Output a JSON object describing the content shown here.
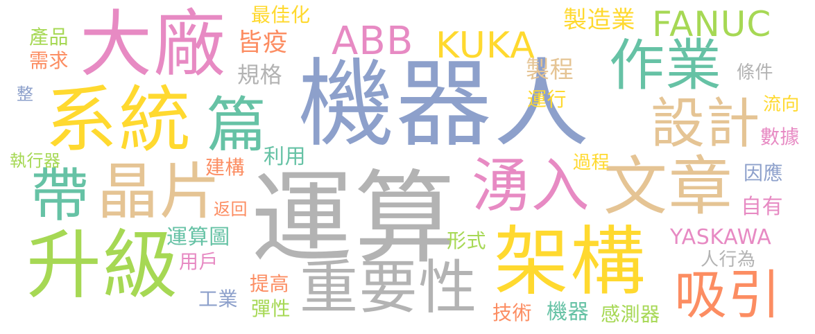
{
  "colors": {
    "background": "#ffffff",
    "blue": "#8da0cb",
    "gray": "#b3b3b3",
    "yellow": "#ffd92f",
    "green": "#a6d854",
    "pink": "#e78ac3",
    "teal": "#66c2a5",
    "tan": "#e5c494",
    "orange": "#fc8d62"
  },
  "words": [
    {
      "text": "機器人",
      "color": "#8da0cb"
    },
    {
      "text": "運算",
      "color": "#b3b3b3"
    },
    {
      "text": "架構",
      "color": "#ffd92f"
    },
    {
      "text": "系統",
      "color": "#ffd92f"
    },
    {
      "text": "升級",
      "color": "#a6d854"
    },
    {
      "text": "大廠",
      "color": "#e78ac3"
    },
    {
      "text": "晶片",
      "color": "#e5c494"
    },
    {
      "text": "湧入",
      "color": "#e78ac3"
    },
    {
      "text": "文章",
      "color": "#e5c494"
    },
    {
      "text": "重要性",
      "color": "#b3b3b3"
    },
    {
      "text": "吸引",
      "color": "#fc8d62"
    },
    {
      "text": "作業",
      "color": "#66c2a5"
    },
    {
      "text": "設計",
      "color": "#e5c494"
    },
    {
      "text": "篇",
      "color": "#66c2a5"
    },
    {
      "text": "帶",
      "color": "#66c2a5"
    },
    {
      "text": "ABB",
      "color": "#e78ac3"
    },
    {
      "text": "KUKA",
      "color": "#ffd92f"
    },
    {
      "text": "FANUC",
      "color": "#a6d854"
    },
    {
      "text": "製造業",
      "color": "#ffd92f"
    },
    {
      "text": "最佳化",
      "color": "#ffd92f"
    },
    {
      "text": "皆疫",
      "color": "#fc8d62"
    },
    {
      "text": "規格",
      "color": "#b3b3b3"
    },
    {
      "text": "產品",
      "color": "#a6d854"
    },
    {
      "text": "需求",
      "color": "#fc8d62"
    },
    {
      "text": "整",
      "color": "#8da0cb"
    },
    {
      "text": "執行器",
      "color": "#a6d854"
    },
    {
      "text": "建構",
      "color": "#fc8d62"
    },
    {
      "text": "利用",
      "color": "#66c2a5"
    },
    {
      "text": "返回",
      "color": "#fc8d62"
    },
    {
      "text": "運算圖",
      "color": "#66c2a5"
    },
    {
      "text": "用戶",
      "color": "#e78ac3"
    },
    {
      "text": "提高",
      "color": "#fc8d62"
    },
    {
      "text": "工業",
      "color": "#8da0cb"
    },
    {
      "text": "彈性",
      "color": "#a6d854"
    },
    {
      "text": "製程",
      "color": "#e5c494"
    },
    {
      "text": "運行",
      "color": "#ffd92f"
    },
    {
      "text": "條件",
      "color": "#b3b3b3"
    },
    {
      "text": "流向",
      "color": "#ffd92f"
    },
    {
      "text": "數據",
      "color": "#e78ac3"
    },
    {
      "text": "過程",
      "color": "#ffd92f"
    },
    {
      "text": "因應",
      "color": "#8da0cb"
    },
    {
      "text": "自有",
      "color": "#e78ac3"
    },
    {
      "text": "YASKAWA",
      "color": "#e78ac3"
    },
    {
      "text": "人行為",
      "color": "#b3b3b3"
    },
    {
      "text": "形式",
      "color": "#a6d854"
    },
    {
      "text": "技術",
      "color": "#fc8d62"
    },
    {
      "text": "機器",
      "color": "#66c2a5"
    },
    {
      "text": "感測器",
      "color": "#a6d854"
    }
  ]
}
